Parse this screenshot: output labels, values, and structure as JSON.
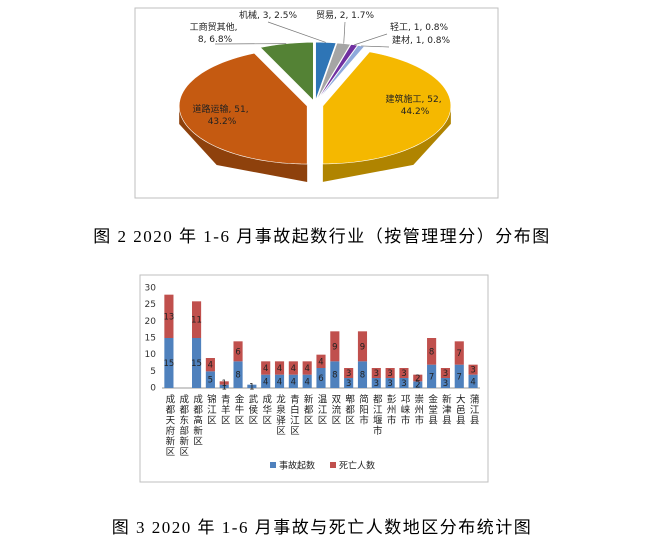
{
  "chart_data": [
    {
      "type": "pie",
      "caption": "图 2   2020 年 1-6 月事故起数行业（按管理理分）分布图",
      "categories": [
        "机械",
        "贸易",
        "轻工",
        "建材",
        "建筑施工",
        "道路运输",
        "工商贸其他"
      ],
      "values": [
        3,
        2,
        1,
        1,
        52,
        51,
        8
      ],
      "percents": [
        2.5,
        1.7,
        0.8,
        0.8,
        44.2,
        43.2,
        6.8
      ],
      "percent_labels": [
        "2.5%",
        "1.7%",
        "0.8%",
        "0.8%",
        "44.2%",
        "43.2%",
        "6.8%"
      ],
      "colors": [
        "#2e75b6",
        "#a5a5a5",
        "#7030a0",
        "#8faadc",
        "#f5b800",
        "#c55a11",
        "#548235"
      ]
    },
    {
      "type": "bar",
      "caption": "图 3   2020 年 1-6 月事故与死亡人数地区分布统计图",
      "stacked": true,
      "categories": [
        "成都天府新区",
        "成都东部新区",
        "成都高新区",
        "锦江区",
        "青羊区",
        "金牛区",
        "武侯区",
        "成华区",
        "龙泉驿区",
        "青白江区",
        "新都区",
        "温江区",
        "双流区",
        "郫都区",
        "简阳市",
        "都江堰市",
        "彭州市",
        "邛崃市",
        "崇州市",
        "金堂县",
        "新津县",
        "大邑县",
        "蒲江县"
      ],
      "series": [
        {
          "name": "事故起数",
          "color": "#4f81bd",
          "values": [
            15,
            0,
            15,
            5,
            1,
            8,
            1,
            4,
            4,
            4,
            4,
            6,
            8,
            3,
            8,
            3,
            3,
            3,
            2,
            7,
            3,
            7,
            4
          ]
        },
        {
          "name": "死亡人数",
          "color": "#c0504d",
          "values": [
            13,
            0,
            11,
            4,
            1,
            6,
            0,
            4,
            4,
            4,
            4,
            4,
            9,
            3,
            9,
            3,
            3,
            3,
            2,
            8,
            3,
            7,
            3
          ]
        }
      ],
      "ylim": [
        0,
        30
      ],
      "yticks": [
        0,
        5,
        10,
        15,
        20,
        25,
        30
      ],
      "grid": false,
      "legend": "bottom"
    }
  ]
}
